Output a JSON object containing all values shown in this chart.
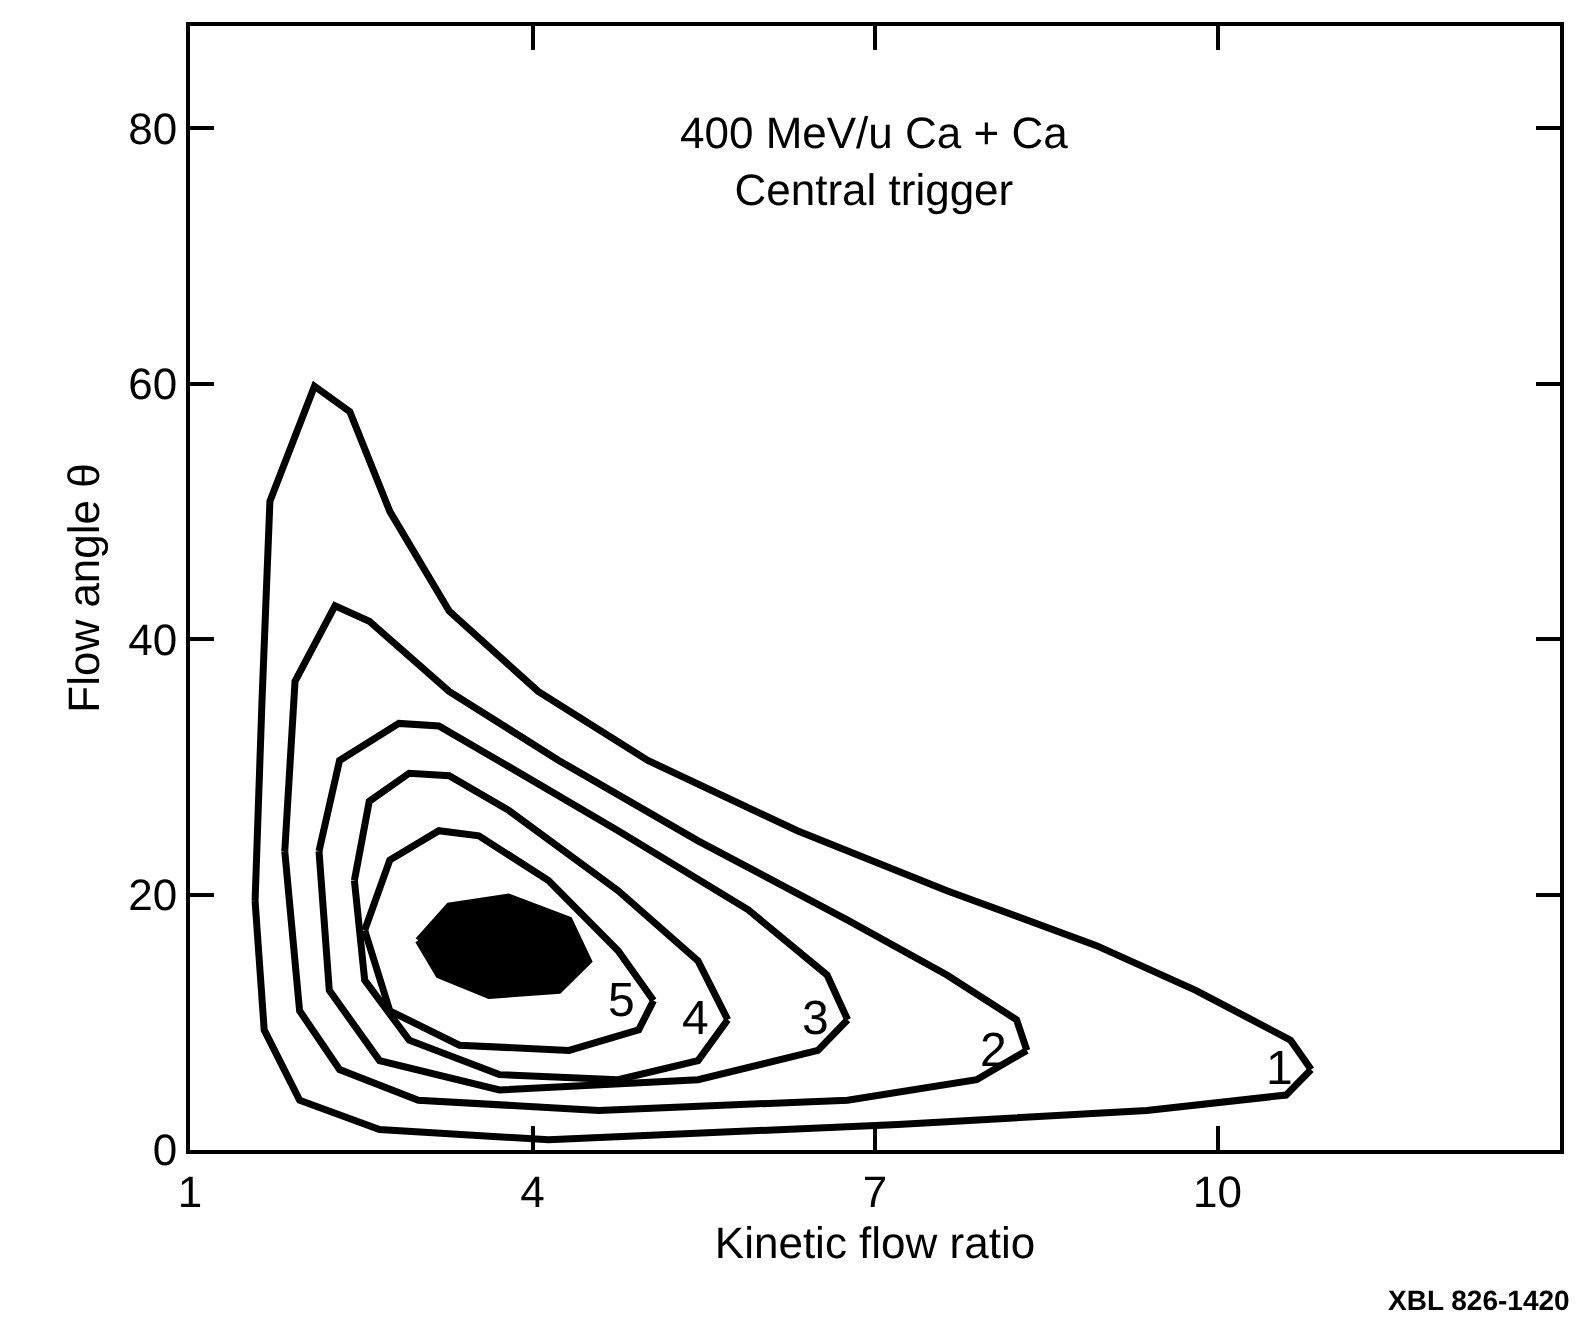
{
  "chart_data": {
    "type": "line",
    "title": "400 MeV/u Ca + Ca",
    "subtitle": "Central trigger",
    "xlabel": "Kinetic flow ratio",
    "ylabel": "Flow angle θ",
    "xlim": [
      1,
      13
    ],
    "ylim": [
      0,
      88
    ],
    "xticks": [
      1,
      4,
      7,
      10
    ],
    "yticks": [
      0,
      20,
      40,
      60,
      80
    ],
    "grid": false,
    "legend": false,
    "marker": "none",
    "line_style": "solid",
    "series": [
      {
        "name": "1",
        "color": "#000000",
        "x": [
          1.57,
          1.63,
          1.7,
          2.09,
          2.4,
          2.75,
          3.27,
          4.05,
          5.01,
          6.32,
          7.63,
          8.94,
          9.81,
          10.64,
          10.82,
          null,
          1.57,
          1.65,
          1.96,
          2.66,
          4.14,
          7.2,
          9.38,
          10.6,
          10.82
        ],
        "values": [
          19.5,
          35,
          50.8,
          59.8,
          57.8,
          50,
          42.2,
          35.9,
          30.5,
          25,
          20.3,
          16,
          12.5,
          8.6,
          6.3,
          null,
          19.5,
          9.4,
          3.9,
          1.6,
          0.8,
          2.0,
          3.1,
          4.3,
          6.3
        ]
      },
      {
        "name": "2",
        "color": "#000000",
        "x": [
          1.83,
          1.92,
          2.27,
          2.57,
          3.27,
          4.23,
          5.45,
          6.76,
          7.63,
          8.24,
          8.33,
          null,
          1.83,
          1.96,
          2.31,
          3.0,
          4.58,
          6.76,
          7.89,
          8.33
        ],
        "values": [
          23.4,
          36.7,
          42.6,
          41.4,
          35.9,
          30.5,
          24.2,
          18,
          13.7,
          10.2,
          7.8,
          null,
          23.4,
          10.9,
          6.3,
          3.9,
          3.1,
          3.9,
          5.5,
          7.8
        ]
      },
      {
        "name": "3",
        "color": "#000000",
        "x": [
          2.13,
          2.31,
          2.83,
          3.18,
          3.7,
          4.75,
          5.89,
          6.58,
          6.76,
          null,
          2.13,
          2.22,
          2.66,
          3.71,
          5.45,
          6.5,
          6.76
        ],
        "values": [
          23.4,
          30.5,
          33.4,
          33.2,
          30.5,
          25,
          18.8,
          13.7,
          10.2,
          null,
          23.4,
          12.5,
          7,
          4.7,
          5.5,
          7.8,
          10.2
        ]
      },
      {
        "name": "4",
        "color": "#000000",
        "x": [
          2.44,
          2.57,
          2.92,
          3.27,
          3.79,
          4.75,
          5.45,
          5.71,
          null,
          2.44,
          2.53,
          2.92,
          3.71,
          4.75,
          5.45,
          5.71
        ],
        "values": [
          21.1,
          27.3,
          29.5,
          29.3,
          26.6,
          20.3,
          14.8,
          10.2,
          null,
          21.1,
          13.3,
          8.6,
          5.9,
          5.5,
          7,
          10.2
        ]
      },
      {
        "name": "5",
        "color": "#000000",
        "x": [
          2.53,
          2.75,
          3.18,
          3.53,
          4.14,
          4.75,
          5.06,
          null,
          2.53,
          2.75,
          3.36,
          4.32,
          4.93,
          5.06
        ],
        "values": [
          17.2,
          22.7,
          25,
          24.6,
          21.1,
          15.6,
          11.7,
          null,
          17.2,
          10.9,
          8.2,
          7.8,
          9.4,
          11.7
        ]
      },
      {
        "type": "area",
        "color": "#000000",
        "x": [
          3.0,
          3.27,
          3.79,
          4.32,
          4.49,
          4.23,
          3.62,
          3.18,
          3.0
        ],
        "values": [
          16.4,
          19.1,
          19.8,
          18,
          14.8,
          12.5,
          12.1,
          13.7,
          16.4
        ]
      }
    ],
    "annotations": [
      "XBL 826-1420"
    ]
  }
}
